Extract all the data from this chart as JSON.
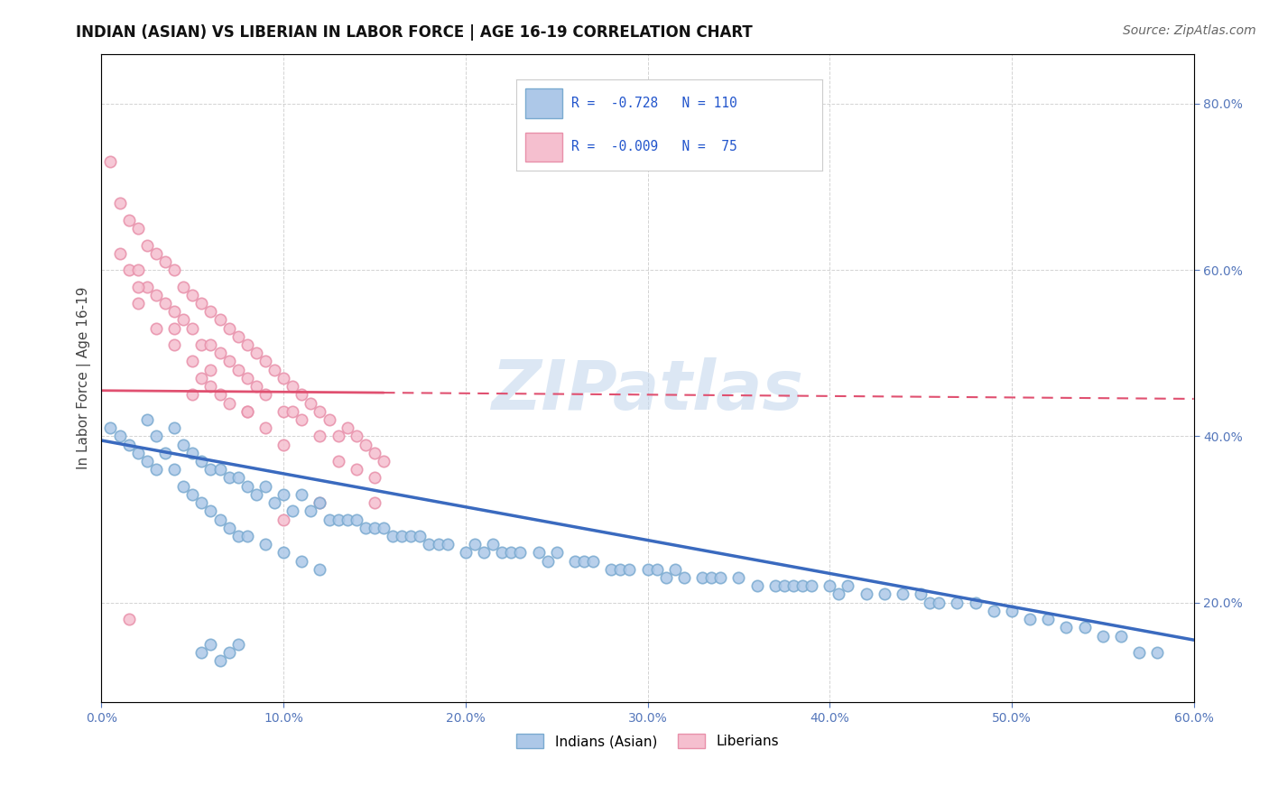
{
  "title": "INDIAN (ASIAN) VS LIBERIAN IN LABOR FORCE | AGE 16-19 CORRELATION CHART",
  "source": "Source: ZipAtlas.com",
  "ylabel": "In Labor Force | Age 16-19",
  "xmin": 0.0,
  "xmax": 0.6,
  "ymin": 0.08,
  "ymax": 0.86,
  "blue_color": "#adc8e8",
  "blue_edge": "#7aaad0",
  "pink_color": "#f5bfcf",
  "pink_edge": "#e890aa",
  "trend_blue_color": "#3a6abf",
  "trend_pink_color": "#e05070",
  "watermark": "ZIPatlas",
  "watermark_color": "#c5d8ee",
  "legend_r1": "R =  -0.728",
  "legend_n1": "N = 110",
  "legend_r2": "R =  -0.009",
  "legend_n2": "N =  75",
  "blue_trend_y0": 0.395,
  "blue_trend_y1": 0.155,
  "pink_trend_y0": 0.455,
  "pink_trend_y1": 0.445,
  "blue_x": [
    0.005,
    0.01,
    0.015,
    0.02,
    0.025,
    0.025,
    0.03,
    0.03,
    0.035,
    0.04,
    0.04,
    0.045,
    0.045,
    0.05,
    0.05,
    0.055,
    0.055,
    0.06,
    0.06,
    0.065,
    0.065,
    0.07,
    0.07,
    0.075,
    0.075,
    0.08,
    0.08,
    0.085,
    0.09,
    0.09,
    0.095,
    0.1,
    0.1,
    0.105,
    0.11,
    0.11,
    0.115,
    0.12,
    0.12,
    0.125,
    0.13,
    0.135,
    0.14,
    0.145,
    0.15,
    0.155,
    0.16,
    0.165,
    0.17,
    0.175,
    0.18,
    0.185,
    0.19,
    0.2,
    0.205,
    0.21,
    0.215,
    0.22,
    0.225,
    0.23,
    0.24,
    0.245,
    0.25,
    0.26,
    0.265,
    0.27,
    0.28,
    0.285,
    0.29,
    0.3,
    0.305,
    0.31,
    0.315,
    0.32,
    0.33,
    0.335,
    0.34,
    0.35,
    0.36,
    0.37,
    0.375,
    0.38,
    0.385,
    0.39,
    0.4,
    0.405,
    0.41,
    0.42,
    0.43,
    0.44,
    0.45,
    0.455,
    0.46,
    0.47,
    0.48,
    0.49,
    0.5,
    0.51,
    0.52,
    0.53,
    0.54,
    0.55,
    0.56,
    0.57,
    0.58,
    0.055,
    0.06,
    0.065,
    0.07,
    0.075
  ],
  "blue_y": [
    0.41,
    0.4,
    0.39,
    0.38,
    0.42,
    0.37,
    0.4,
    0.36,
    0.38,
    0.41,
    0.36,
    0.39,
    0.34,
    0.38,
    0.33,
    0.37,
    0.32,
    0.36,
    0.31,
    0.36,
    0.3,
    0.35,
    0.29,
    0.35,
    0.28,
    0.34,
    0.28,
    0.33,
    0.34,
    0.27,
    0.32,
    0.33,
    0.26,
    0.31,
    0.33,
    0.25,
    0.31,
    0.32,
    0.24,
    0.3,
    0.3,
    0.3,
    0.3,
    0.29,
    0.29,
    0.29,
    0.28,
    0.28,
    0.28,
    0.28,
    0.27,
    0.27,
    0.27,
    0.26,
    0.27,
    0.26,
    0.27,
    0.26,
    0.26,
    0.26,
    0.26,
    0.25,
    0.26,
    0.25,
    0.25,
    0.25,
    0.24,
    0.24,
    0.24,
    0.24,
    0.24,
    0.23,
    0.24,
    0.23,
    0.23,
    0.23,
    0.23,
    0.23,
    0.22,
    0.22,
    0.22,
    0.22,
    0.22,
    0.22,
    0.22,
    0.21,
    0.22,
    0.21,
    0.21,
    0.21,
    0.21,
    0.2,
    0.2,
    0.2,
    0.2,
    0.19,
    0.19,
    0.18,
    0.18,
    0.17,
    0.17,
    0.16,
    0.16,
    0.14,
    0.14,
    0.14,
    0.15,
    0.13,
    0.14,
    0.15
  ],
  "pink_x": [
    0.005,
    0.01,
    0.01,
    0.015,
    0.015,
    0.02,
    0.02,
    0.02,
    0.025,
    0.025,
    0.03,
    0.03,
    0.03,
    0.035,
    0.035,
    0.04,
    0.04,
    0.04,
    0.045,
    0.045,
    0.05,
    0.05,
    0.05,
    0.05,
    0.055,
    0.055,
    0.055,
    0.06,
    0.06,
    0.06,
    0.065,
    0.065,
    0.065,
    0.07,
    0.07,
    0.07,
    0.075,
    0.075,
    0.08,
    0.08,
    0.08,
    0.085,
    0.085,
    0.09,
    0.09,
    0.09,
    0.095,
    0.1,
    0.1,
    0.1,
    0.105,
    0.105,
    0.11,
    0.11,
    0.115,
    0.12,
    0.12,
    0.125,
    0.13,
    0.13,
    0.135,
    0.14,
    0.14,
    0.145,
    0.15,
    0.15,
    0.15,
    0.155,
    0.12,
    0.1,
    0.08,
    0.06,
    0.04,
    0.02,
    0.015
  ],
  "pink_y": [
    0.73,
    0.68,
    0.62,
    0.66,
    0.6,
    0.65,
    0.6,
    0.56,
    0.63,
    0.58,
    0.62,
    0.57,
    0.53,
    0.61,
    0.56,
    0.6,
    0.55,
    0.51,
    0.58,
    0.54,
    0.57,
    0.53,
    0.49,
    0.45,
    0.56,
    0.51,
    0.47,
    0.55,
    0.51,
    0.46,
    0.54,
    0.5,
    0.45,
    0.53,
    0.49,
    0.44,
    0.52,
    0.48,
    0.51,
    0.47,
    0.43,
    0.5,
    0.46,
    0.49,
    0.45,
    0.41,
    0.48,
    0.47,
    0.43,
    0.39,
    0.46,
    0.43,
    0.45,
    0.42,
    0.44,
    0.43,
    0.4,
    0.42,
    0.4,
    0.37,
    0.41,
    0.4,
    0.36,
    0.39,
    0.38,
    0.35,
    0.32,
    0.37,
    0.32,
    0.3,
    0.43,
    0.48,
    0.53,
    0.58,
    0.18
  ]
}
